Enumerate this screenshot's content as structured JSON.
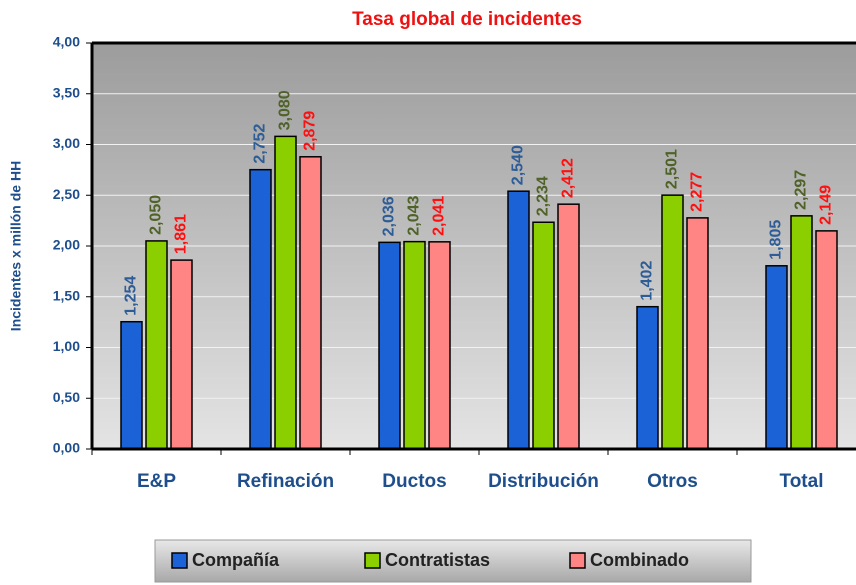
{
  "chart_data": {
    "type": "bar",
    "title": "Tasa global de incidentes",
    "y_label": "Incidentes x millón de HH",
    "categories": [
      "E&P",
      "Refinación",
      "Ductos",
      "Distribución",
      "Otros",
      "Total"
    ],
    "series": [
      {
        "name": "Compañía",
        "color": "#1a62d6",
        "label_color": "#2e5c96",
        "values": [
          1.254,
          2.752,
          2.036,
          2.54,
          1.402,
          1.805
        ],
        "value_labels": [
          "1,254",
          "2,752",
          "2,036",
          "2,540",
          "1,402",
          "1,805"
        ]
      },
      {
        "name": "Contratistas",
        "color": "#8ccf00",
        "label_color": "#4f6228",
        "values": [
          2.05,
          3.08,
          2.043,
          2.234,
          2.501,
          2.297
        ],
        "value_labels": [
          "2,050",
          "3,080",
          "2,043",
          "2,234",
          "2,501",
          "2,297"
        ]
      },
      {
        "name": "Combinado",
        "color": "#ff8585",
        "label_color": "#ff1010",
        "values": [
          1.861,
          2.879,
          2.041,
          2.412,
          2.277,
          2.149
        ],
        "value_labels": [
          "1,861",
          "2,879",
          "2,041",
          "2,412",
          "2,277",
          "2,149"
        ]
      }
    ],
    "ylim": [
      0,
      4
    ],
    "yticks": [
      {
        "value": 0,
        "label": "0,00"
      },
      {
        "value": 0.5,
        "label": "0,50"
      },
      {
        "value": 1,
        "label": "1,00"
      },
      {
        "value": 1.5,
        "label": "1,50"
      },
      {
        "value": 2,
        "label": "2,00"
      },
      {
        "value": 2.5,
        "label": "2,50"
      },
      {
        "value": 3,
        "label": "3,00"
      },
      {
        "value": 3.5,
        "label": "3,50"
      },
      {
        "value": 4,
        "label": "4,00"
      }
    ],
    "grid": true
  }
}
